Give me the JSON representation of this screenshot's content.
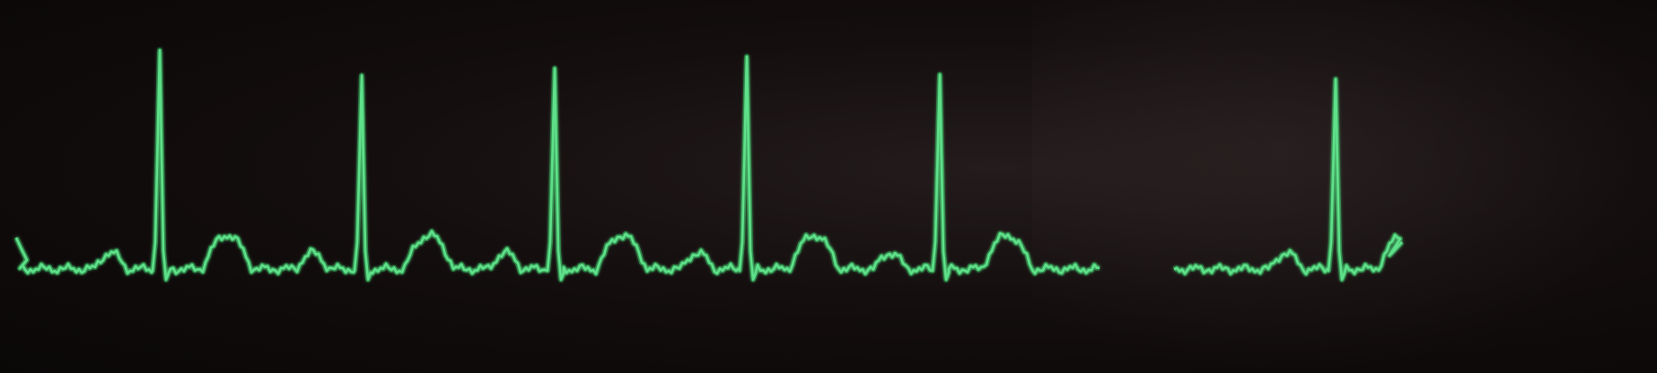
{
  "trace": {
    "color": "#5fe08a",
    "glow_color": "#2cff6a",
    "background": "#0c0808",
    "visible_beats": 6,
    "signal_gap_present": true
  }
}
